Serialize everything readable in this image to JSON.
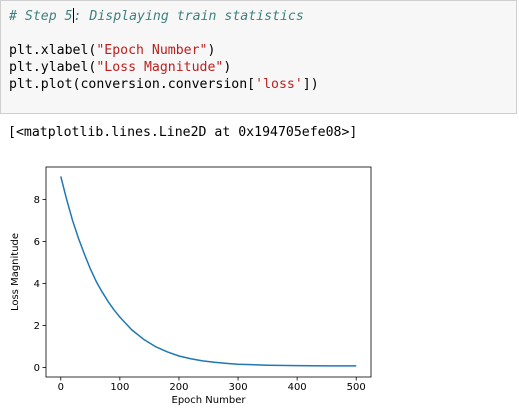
{
  "code_cell": {
    "lines": [
      {
        "type": "comment_with_cursor",
        "before": "# Step 5",
        "after": ": Displaying train statistics"
      },
      {
        "type": "blank"
      },
      {
        "type": "call",
        "func": "plt.xlabel(",
        "arg": "\"Epoch Number\"",
        "close": ")"
      },
      {
        "type": "call",
        "func": "plt.ylabel(",
        "arg": "\"Loss Magnitude\"",
        "close": ")"
      },
      {
        "type": "call_nested",
        "func": "plt.plot(conversion.conversion[",
        "arg": "'loss'",
        "close": "])"
      }
    ]
  },
  "output": {
    "text": "[<matplotlib.lines.Line2D at 0x194705efe08>]"
  },
  "chart_data": {
    "type": "line",
    "title": "",
    "xlabel": "Epoch Number",
    "ylabel": "Loss Magnitude",
    "xlim": [
      -25,
      525
    ],
    "ylim": [
      -0.45,
      9.55
    ],
    "xticks": [
      0,
      100,
      200,
      300,
      400,
      500
    ],
    "yticks": [
      0,
      2,
      4,
      6,
      8
    ],
    "grid": false,
    "line_color": "#1f77b4",
    "series": [
      {
        "x": [
          0,
          10,
          20,
          30,
          40,
          50,
          60,
          70,
          80,
          90,
          100,
          120,
          140,
          160,
          180,
          200,
          220,
          240,
          260,
          280,
          300,
          350,
          400,
          450,
          500
        ],
        "values": [
          9.1,
          8.0,
          7.0,
          6.15,
          5.4,
          4.7,
          4.1,
          3.6,
          3.15,
          2.75,
          2.4,
          1.8,
          1.35,
          1.0,
          0.75,
          0.55,
          0.42,
          0.32,
          0.25,
          0.2,
          0.16,
          0.11,
          0.09,
          0.08,
          0.08
        ]
      }
    ]
  }
}
